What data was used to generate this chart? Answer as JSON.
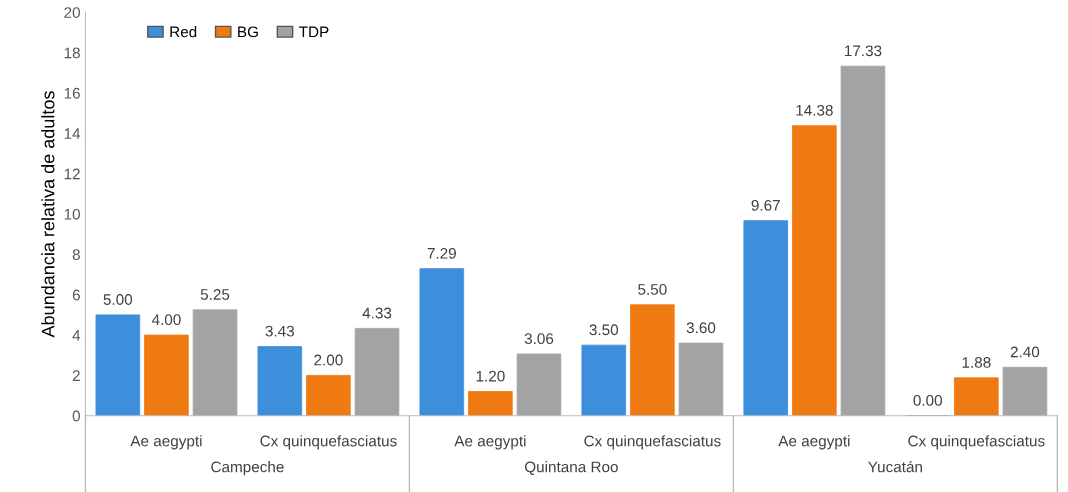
{
  "chart_data": {
    "type": "bar",
    "ylabel": "Abundancia relativa de adultos",
    "categories": [
      "Ae aegypti",
      "Cx quinquefasciatus",
      "Ae aegypti",
      "Cx quinquefasciatus",
      "Ae aegypti",
      "Cx quinquefasciatus"
    ],
    "series": [
      {
        "name": "Red",
        "color": "#3d8fdc",
        "values": [
          5.0,
          3.43,
          7.29,
          3.5,
          9.67,
          0.0
        ],
        "value_labels": [
          "5.00",
          "3.43",
          "7.29",
          "3.50",
          "9.67",
          "0.00"
        ]
      },
      {
        "name": "BG",
        "color": "#f07a12",
        "values": [
          4.0,
          2.0,
          1.2,
          5.5,
          14.38,
          1.88
        ],
        "value_labels": [
          "4.00",
          "2.00",
          "1.20",
          "5.50",
          "14.38",
          "1.88"
        ]
      },
      {
        "name": "TDP",
        "color": "#a3a3a3",
        "values": [
          5.25,
          4.33,
          3.06,
          3.6,
          17.33,
          2.4
        ],
        "value_labels": [
          "5.25",
          "4.33",
          "3.06",
          "3.60",
          "17.33",
          "2.40"
        ]
      }
    ],
    "annotations": [
      "Campeche",
      "Quintana Roo",
      "Yucatán"
    ],
    "ylim": [
      0,
      20
    ],
    "yticks": [
      0,
      2,
      4,
      6,
      8,
      10,
      12,
      14,
      16,
      18,
      20
    ],
    "legend": "top left",
    "grid": false
  }
}
